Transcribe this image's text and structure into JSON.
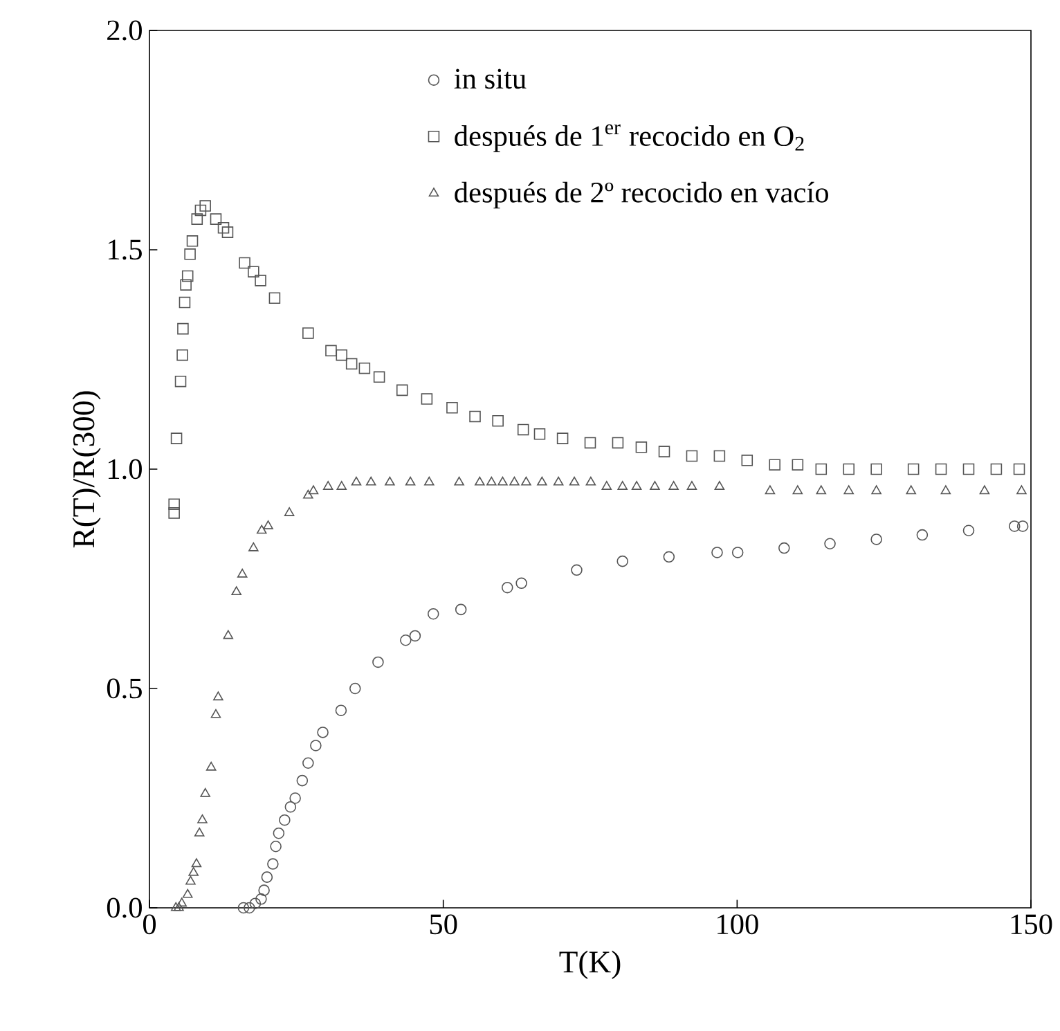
{
  "chart_data": {
    "type": "scatter",
    "xlabel": "T(K)",
    "ylabel": "R(T)/R(300)",
    "xlim": [
      0,
      150
    ],
    "xticks": [
      0,
      50,
      100,
      150
    ],
    "ylim": [
      0,
      2.0
    ],
    "yticks": [
      {
        "value": 0,
        "label": "0.0"
      },
      {
        "value": 0.5,
        "label": "0.5"
      },
      {
        "value": 1.0,
        "label": "1.0"
      },
      {
        "value": 1.5,
        "label": "1.5"
      },
      {
        "value": 2.0,
        "label": "2.0"
      }
    ],
    "legend": "top right",
    "grid": false,
    "series": [
      {
        "name": "in situ",
        "marker": "circle",
        "color": "#555555",
        "x": [
          16,
          17,
          18,
          19,
          19.5,
          20,
          21,
          21.5,
          22,
          23,
          24,
          24.8,
          26,
          27,
          28.3,
          29.5,
          32.6,
          35.0,
          38.9,
          43.6,
          45.2,
          48.3,
          53.0,
          60.9,
          63.3,
          72.7,
          80.5,
          88.4,
          96.6,
          100.1,
          108,
          115.8,
          123.7,
          131.5,
          139.4,
          147.2,
          148.6
        ],
        "values": [
          0.0,
          0.0,
          0.01,
          0.02,
          0.04,
          0.07,
          0.1,
          0.14,
          0.17,
          0.2,
          0.23,
          0.25,
          0.29,
          0.33,
          0.37,
          0.4,
          0.45,
          0.5,
          0.56,
          0.61,
          0.62,
          0.67,
          0.68,
          0.73,
          0.74,
          0.77,
          0.79,
          0.8,
          0.81,
          0.81,
          0.82,
          0.83,
          0.84,
          0.85,
          0.86,
          0.87,
          0.87
        ]
      },
      {
        "name": "después de 1$^{er}$ recocido en O$_{2}$",
        "marker": "square",
        "color": "#555555",
        "x": [
          4.2,
          4.2,
          4.6,
          5.3,
          5.6,
          5.7,
          6.0,
          6.2,
          6.5,
          6.9,
          7.3,
          8.1,
          8.7,
          9.5,
          11.3,
          12.6,
          13.3,
          16.2,
          17.7,
          18.9,
          21.3,
          27.0,
          30.9,
          32.7,
          34.4,
          36.6,
          39.1,
          43.0,
          47.2,
          51.5,
          55.4,
          59.3,
          63.6,
          66.4,
          70.3,
          75.0,
          79.7,
          83.7,
          87.6,
          92.3,
          97.0,
          101.7,
          106.4,
          110.3,
          114.3,
          119.0,
          123.7,
          130.0,
          134.7,
          139.4,
          144.1,
          148.0
        ],
        "values": [
          0.9,
          0.92,
          1.07,
          1.2,
          1.26,
          1.32,
          1.38,
          1.42,
          1.44,
          1.49,
          1.52,
          1.57,
          1.59,
          1.6,
          1.57,
          1.55,
          1.54,
          1.47,
          1.45,
          1.43,
          1.39,
          1.31,
          1.27,
          1.26,
          1.24,
          1.23,
          1.21,
          1.18,
          1.16,
          1.14,
          1.12,
          1.11,
          1.09,
          1.08,
          1.07,
          1.06,
          1.06,
          1.05,
          1.04,
          1.03,
          1.03,
          1.02,
          1.01,
          1.01,
          1.0,
          1.0,
          1.0,
          1.0,
          1.0,
          1.0,
          1.0,
          1.0
        ]
      },
      {
        "name": "después de 2º recocido en vacío",
        "marker": "triangle",
        "color": "#555555",
        "x": [
          4.5,
          5,
          5.5,
          6.5,
          7,
          7.5,
          8,
          8.5,
          9,
          9.5,
          10.5,
          11.3,
          11.7,
          13.4,
          14.8,
          15.8,
          17.7,
          19.1,
          20.2,
          23.8,
          27.0,
          27.9,
          30.4,
          32.7,
          35.2,
          37.7,
          40.9,
          44.4,
          47.6,
          52.7,
          56.2,
          58.2,
          60.1,
          62.1,
          64.1,
          66.8,
          69.6,
          72.3,
          75.1,
          77.8,
          80.5,
          82.9,
          86.0,
          89.2,
          92.3,
          97.0,
          105.6,
          110.3,
          114.3,
          119.0,
          123.7,
          129.6,
          135.5,
          142.1,
          148.4
        ],
        "values": [
          0.0,
          0.0,
          0.01,
          0.03,
          0.06,
          0.08,
          0.1,
          0.17,
          0.2,
          0.26,
          0.32,
          0.44,
          0.48,
          0.62,
          0.72,
          0.76,
          0.82,
          0.86,
          0.87,
          0.9,
          0.94,
          0.95,
          0.96,
          0.96,
          0.97,
          0.97,
          0.97,
          0.97,
          0.97,
          0.97,
          0.97,
          0.97,
          0.97,
          0.97,
          0.97,
          0.97,
          0.97,
          0.97,
          0.97,
          0.96,
          0.96,
          0.96,
          0.96,
          0.96,
          0.96,
          0.96,
          0.95,
          0.95,
          0.95,
          0.95,
          0.95,
          0.95,
          0.95,
          0.95,
          0.95
        ]
      }
    ]
  }
}
